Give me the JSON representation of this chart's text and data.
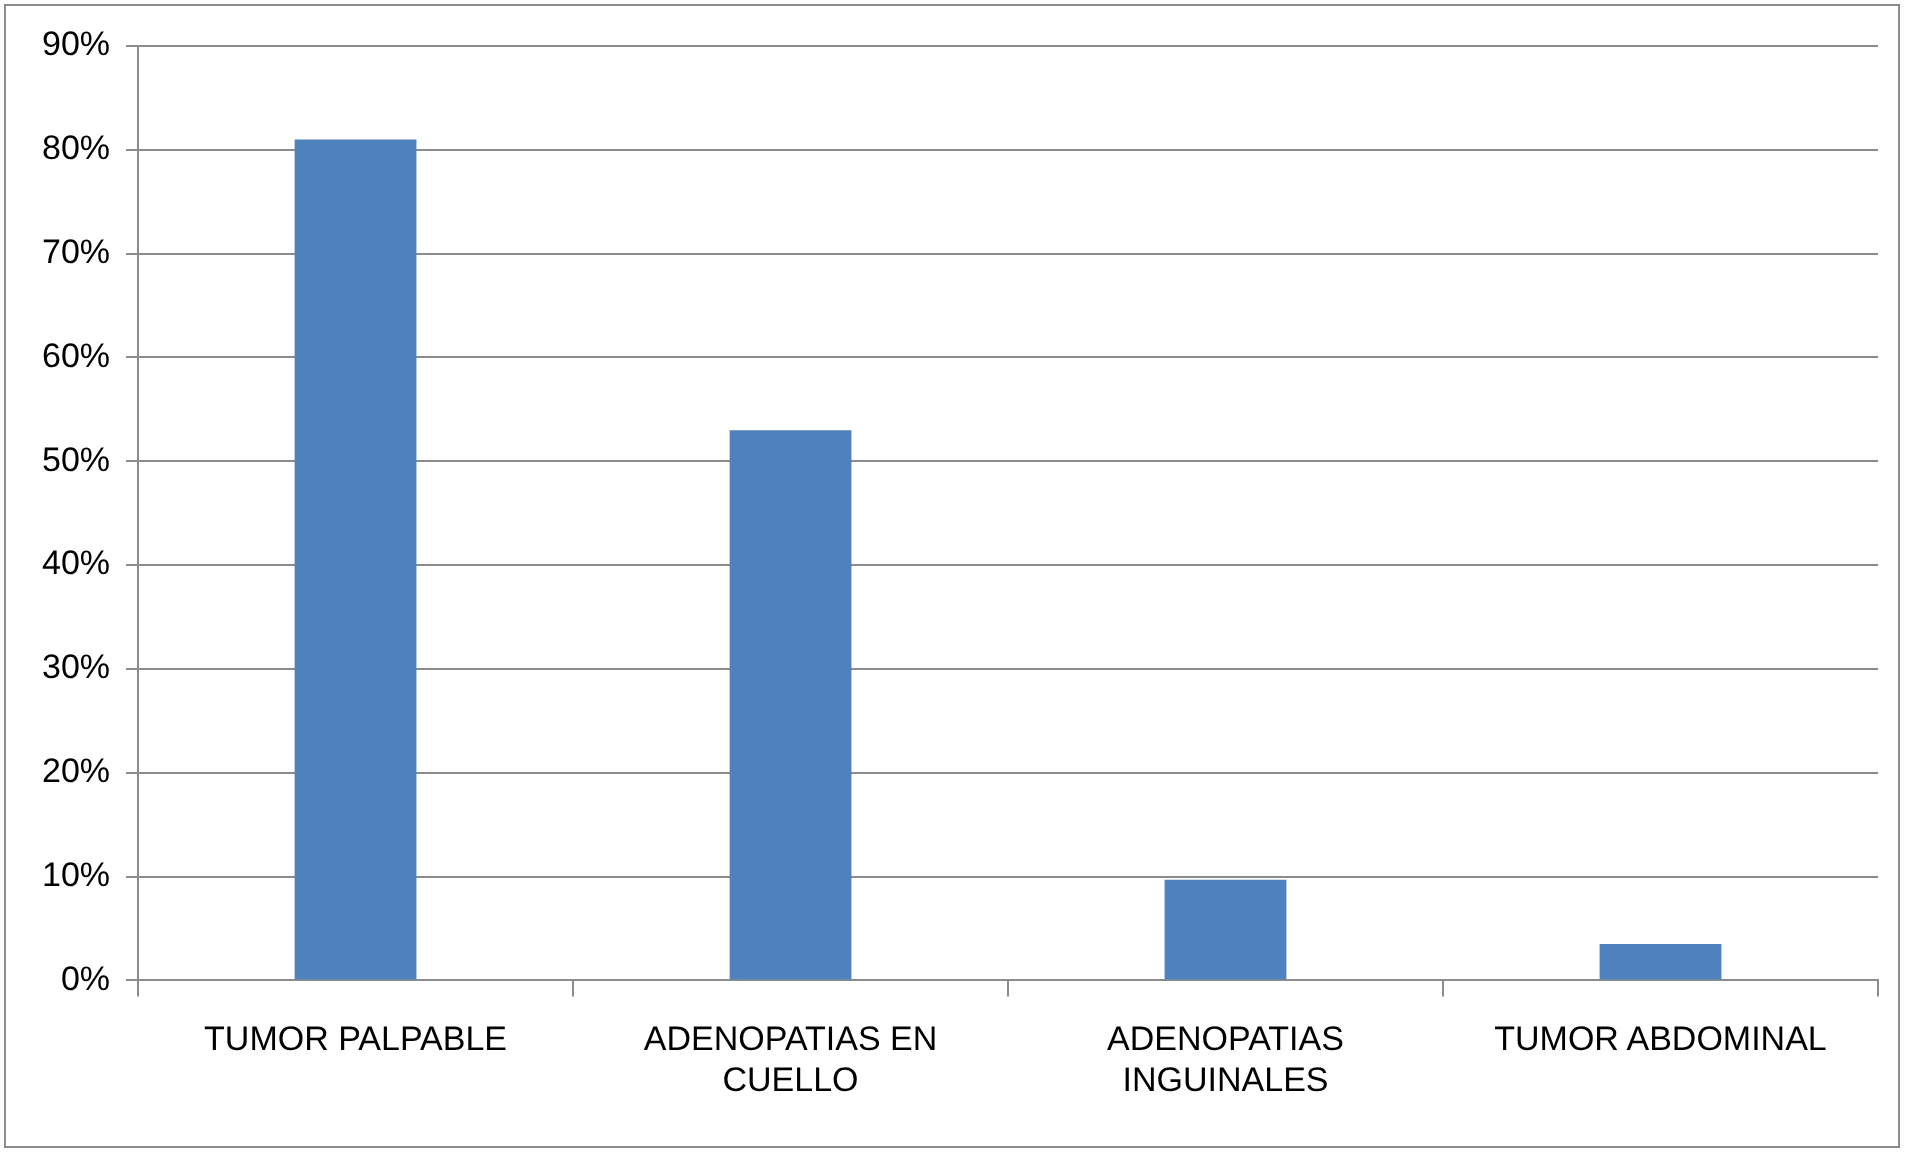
{
  "chart_data": {
    "type": "bar",
    "categories": [
      "TUMOR PALPABLE",
      "ADENOPATIAS EN CUELLO",
      "ADENOPATIAS INGUINALES",
      "TUMOR ABDOMINAL"
    ],
    "values": [
      81,
      53,
      9.7,
      3.5
    ],
    "color": "#4f81bd",
    "ylim": [
      0,
      90
    ],
    "yticks": [
      {
        "value": 0,
        "label": "0%"
      },
      {
        "value": 10,
        "label": "10%"
      },
      {
        "value": 20,
        "label": "20%"
      },
      {
        "value": 30,
        "label": "30%"
      },
      {
        "value": 40,
        "label": "40%"
      },
      {
        "value": 50,
        "label": "50%"
      },
      {
        "value": 60,
        "label": "60%"
      },
      {
        "value": 70,
        "label": "70%"
      },
      {
        "value": 80,
        "label": "80%"
      },
      {
        "value": 90,
        "label": "90%"
      }
    ],
    "grid": "y",
    "legend": false
  }
}
